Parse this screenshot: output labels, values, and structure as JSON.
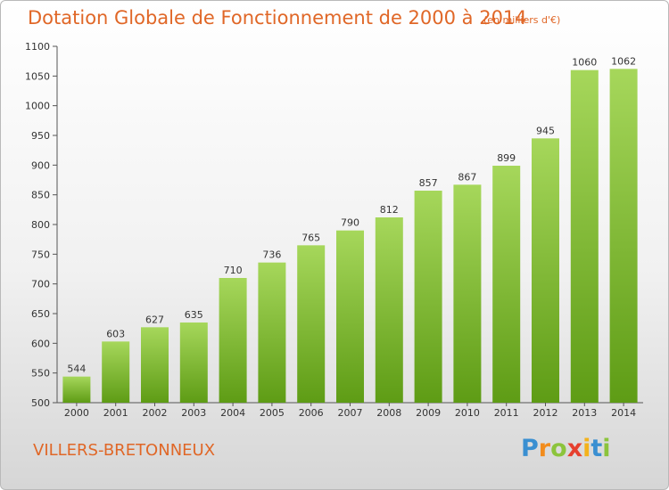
{
  "title": "Dotation Globale de Fonctionnement de 2000 à 2014",
  "subtitle": "(en milliers d'€)",
  "commune": "VILLERS-BRETONNEUX",
  "logo": {
    "letters": [
      "P",
      "r",
      "o",
      "x",
      "i",
      "t",
      "i"
    ],
    "colors": [
      "#3a8fd1",
      "#f28c1c",
      "#8cc43c",
      "#e63f2e",
      "#f3b21b",
      "#3a8fd1",
      "#8cc43c"
    ]
  },
  "colors": {
    "title": "#e06727",
    "bar_light": "#a6d75b",
    "bar_dark": "#5e9c15",
    "axis": "#555555"
  },
  "chart_data": {
    "type": "bar",
    "title": "Dotation Globale de Fonctionnement de 2000 à 2014",
    "subtitle": "(en milliers d'€)",
    "xlabel": "",
    "ylabel": "",
    "categories": [
      "2000",
      "2001",
      "2002",
      "2003",
      "2004",
      "2005",
      "2006",
      "2007",
      "2008",
      "2009",
      "2010",
      "2011",
      "2012",
      "2013",
      "2014"
    ],
    "values": [
      544,
      603,
      627,
      635,
      710,
      736,
      765,
      790,
      812,
      857,
      867,
      899,
      945,
      1060,
      1062
    ],
    "ylim": [
      500,
      1100
    ],
    "yticks": [
      500,
      550,
      600,
      650,
      700,
      750,
      800,
      850,
      900,
      950,
      1000,
      1050,
      1100
    ],
    "grid": false,
    "data_labels": true
  }
}
